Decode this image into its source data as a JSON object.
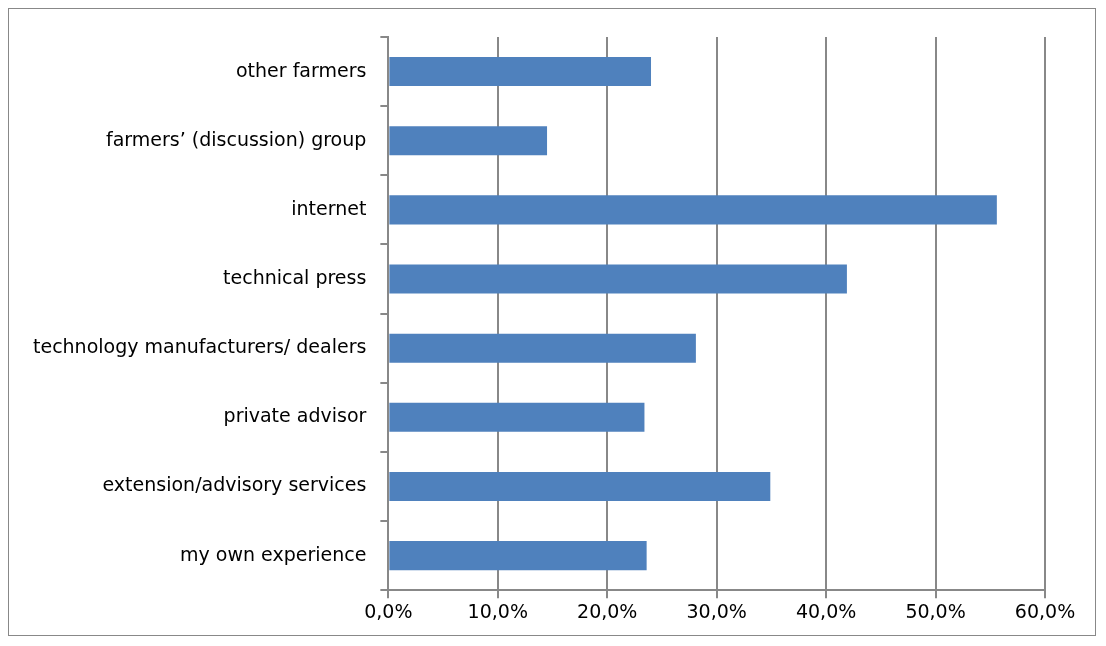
{
  "chart_data": {
    "type": "bar",
    "orientation": "horizontal",
    "categories": [
      "other farmers",
      "farmers’ (discussion) group",
      "internet",
      "technical press",
      "technology manufacturers/ dealers",
      "private advisor",
      "extension/advisory services",
      "my own experience"
    ],
    "values": [
      24.0,
      14.5,
      55.6,
      41.9,
      28.1,
      23.4,
      34.9,
      23.6
    ],
    "color": "#4f81bd",
    "xlim": [
      0,
      60
    ],
    "xticks": [
      {
        "value": 0,
        "label": "0,0%"
      },
      {
        "value": 10,
        "label": "10,0%"
      },
      {
        "value": 20,
        "label": "20,0%"
      },
      {
        "value": 30,
        "label": "30,0%"
      },
      {
        "value": 40,
        "label": "40,0%"
      },
      {
        "value": 50,
        "label": "50,0%"
      },
      {
        "value": 60,
        "label": "60,0%"
      }
    ],
    "grid": "x",
    "legend": false
  }
}
